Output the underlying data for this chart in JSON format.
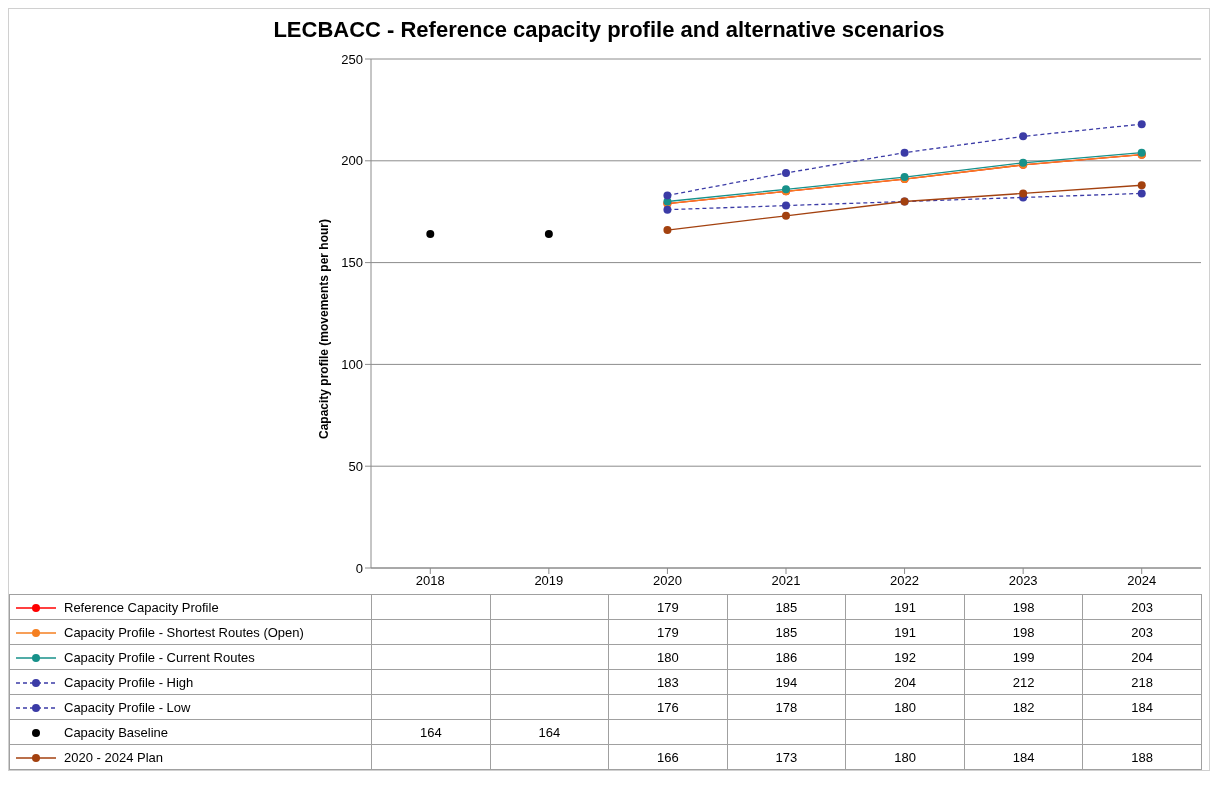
{
  "chart_data": {
    "type": "line",
    "title": "LECBACC - Reference capacity profile and alternative scenarios",
    "ylabel": "Capacity profile (movements per hour)",
    "categories": [
      "2018",
      "2019",
      "2020",
      "2021",
      "2022",
      "2023",
      "2024"
    ],
    "ylim": [
      0,
      250
    ],
    "yticks": [
      0,
      50,
      100,
      150,
      200,
      250
    ],
    "grid": "y",
    "legend": "bottom",
    "marker": "circle",
    "data_labels": true,
    "series": [
      {
        "name": "Reference Capacity Profile",
        "color": "#ff0000",
        "line_style": "solid",
        "values": [
          null,
          null,
          179,
          185,
          191,
          198,
          203
        ]
      },
      {
        "name": "Capacity Profile - Shortest Routes (Open)",
        "color": "#f57f20",
        "line_style": "solid",
        "values": [
          null,
          null,
          179,
          185,
          191,
          198,
          203
        ]
      },
      {
        "name": "Capacity Profile - Current Routes",
        "color": "#17918a",
        "line_style": "solid",
        "values": [
          null,
          null,
          180,
          186,
          192,
          199,
          204
        ]
      },
      {
        "name": "Capacity Profile - High",
        "color": "#3b3ba6",
        "line_style": "dashed",
        "values": [
          null,
          null,
          183,
          194,
          204,
          212,
          218
        ]
      },
      {
        "name": "Capacity Profile - Low",
        "color": "#3b3ba6",
        "line_style": "dashed",
        "values": [
          null,
          null,
          176,
          178,
          180,
          182,
          184
        ]
      },
      {
        "name": "Capacity Baseline",
        "type": "scatter",
        "color": "#000000",
        "values": [
          164,
          164,
          null,
          null,
          null,
          null,
          null
        ]
      },
      {
        "name": "2020 - 2024 Plan",
        "color": "#a3410f",
        "line_style": "solid",
        "values": [
          null,
          null,
          166,
          173,
          180,
          184,
          188
        ]
      }
    ]
  }
}
